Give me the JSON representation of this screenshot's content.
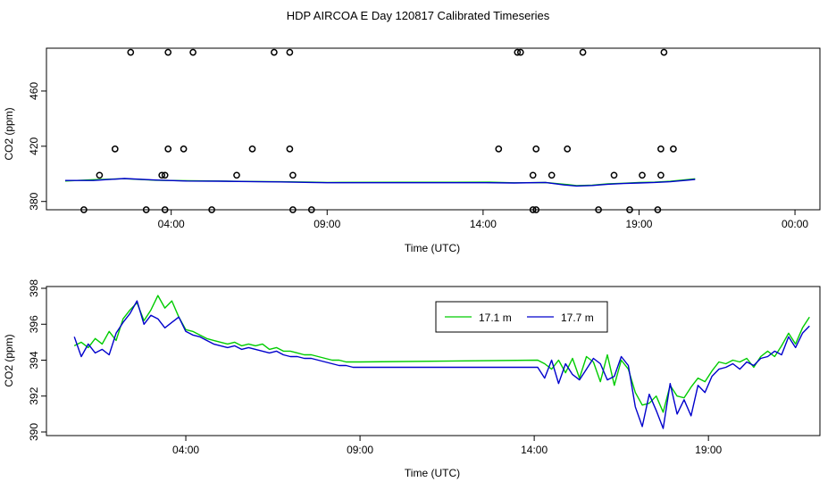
{
  "title": "HDP AIRCOA E  Day 120817  Calibrated Timeseries",
  "colors": {
    "green": "#00cc00",
    "blue": "#0000cc",
    "axis": "#000000",
    "marker": "#000000"
  },
  "chart_data": [
    {
      "type": "line",
      "xlabel": "Time (UTC)",
      "ylabel": "CO2 (ppm)",
      "xlim": [
        0.0,
        24.8
      ],
      "ylim": [
        374,
        491
      ],
      "xticks": [
        4,
        9,
        14,
        19,
        24
      ],
      "xtick_labels": [
        "04:00",
        "09:00",
        "14:00",
        "19:00",
        "00:00"
      ],
      "yticks": [
        380,
        420,
        460
      ],
      "yticks_labels": [
        "380",
        "420",
        "460"
      ],
      "grid": false,
      "series": [
        {
          "color": "green",
          "x": [
            0.6,
            1.5,
            2.5,
            3.5,
            4.5,
            5.5,
            6.5,
            7.5,
            8.5,
            9.0,
            11.5,
            14.2,
            15.0,
            16.0,
            16.6,
            17.0,
            17.5,
            18.0,
            18.5,
            19.0,
            19.5,
            20.0,
            20.8
          ],
          "y": [
            394.8,
            395.8,
            396.5,
            395.4,
            395.0,
            394.8,
            394.5,
            394.3,
            394.0,
            393.8,
            393.9,
            394.0,
            393.5,
            393.7,
            392.5,
            391.5,
            391.8,
            392.8,
            393.2,
            393.7,
            394.0,
            394.6,
            396.4
          ]
        },
        {
          "color": "blue",
          "x": [
            0.6,
            1.5,
            2.5,
            3.5,
            4.5,
            5.5,
            6.5,
            7.5,
            8.5,
            9.0,
            14.1,
            15.0,
            16.0,
            16.6,
            17.0,
            17.5,
            18.0,
            18.5,
            19.0,
            19.5,
            20.0,
            20.8
          ],
          "y": [
            395.2,
            395.2,
            396.6,
            395.5,
            394.8,
            394.7,
            394.4,
            394.2,
            393.8,
            393.6,
            393.6,
            393.4,
            393.8,
            392.0,
            391.2,
            391.6,
            392.5,
            393.0,
            393.4,
            393.8,
            394.3,
            396.0
          ]
        }
      ],
      "markers": {
        "shape": "open-circle",
        "x": [
          1.2,
          1.7,
          2.2,
          2.7,
          3.2,
          3.7,
          3.8,
          3.8,
          3.9,
          3.9,
          4.4,
          4.7,
          5.3,
          6.1,
          6.6,
          7.3,
          7.8,
          7.8,
          7.9,
          7.9,
          8.5,
          14.5,
          15.1,
          15.2,
          15.6,
          15.6,
          15.7,
          15.7,
          16.2,
          16.7,
          17.2,
          17.7,
          18.2,
          18.7,
          19.1,
          19.6,
          19.7,
          19.7,
          19.8,
          20.1
        ],
        "y": [
          374,
          399,
          418,
          488,
          374,
          399,
          374,
          399,
          418,
          488,
          418,
          488,
          374,
          399,
          418,
          488,
          418,
          488,
          374,
          399,
          374,
          418,
          488,
          488,
          374,
          399,
          418,
          374,
          399,
          418,
          488,
          374,
          399,
          374,
          399,
          374,
          399,
          418,
          488,
          418
        ]
      }
    },
    {
      "type": "line",
      "xlabel": "Time (UTC)",
      "ylabel": "CO2 (ppm)",
      "xlim": [
        0.0,
        22.2
      ],
      "ylim": [
        389.8,
        398.1
      ],
      "xticks": [
        4,
        9,
        14,
        19
      ],
      "xtick_labels": [
        "04:00",
        "09:00",
        "14:00",
        "19:00"
      ],
      "yticks": [
        390,
        392,
        394,
        396,
        398
      ],
      "yticks_labels": [
        "390",
        "392",
        "394",
        "396",
        "398"
      ],
      "grid": false,
      "legend": {
        "placement": "top-right-inside",
        "entries": [
          "17.1 m",
          "17.7 m"
        ]
      },
      "series": [
        {
          "name": "17.1 m",
          "color": "green",
          "x": [
            0.8,
            1.0,
            1.2,
            1.4,
            1.6,
            1.8,
            2.0,
            2.2,
            2.4,
            2.6,
            2.8,
            3.0,
            3.2,
            3.4,
            3.6,
            3.8,
            4.0,
            4.2,
            4.4,
            4.6,
            4.8,
            5.0,
            5.2,
            5.4,
            5.6,
            5.8,
            6.0,
            6.2,
            6.4,
            6.6,
            6.8,
            7.0,
            7.2,
            7.4,
            7.6,
            7.8,
            8.0,
            8.2,
            8.4,
            8.6,
            8.8,
            9.0,
            14.1,
            14.3,
            14.5,
            14.7,
            14.9,
            15.1,
            15.3,
            15.5,
            15.7,
            15.9,
            16.1,
            16.3,
            16.5,
            16.7,
            16.9,
            17.1,
            17.3,
            17.5,
            17.7,
            17.9,
            18.1,
            18.3,
            18.5,
            18.7,
            18.9,
            19.1,
            19.3,
            19.5,
            19.7,
            19.9,
            20.1,
            20.3,
            20.5,
            20.7,
            20.9,
            21.1,
            21.3,
            21.5,
            21.7,
            21.9
          ],
          "y": [
            394.8,
            395.0,
            394.7,
            395.2,
            394.9,
            395.6,
            395.1,
            396.3,
            396.8,
            397.2,
            396.2,
            396.8,
            397.6,
            396.9,
            397.3,
            396.4,
            395.7,
            395.6,
            395.4,
            395.2,
            395.1,
            395.0,
            394.9,
            395.0,
            394.8,
            394.9,
            394.8,
            394.9,
            394.6,
            394.7,
            394.5,
            394.5,
            394.4,
            394.3,
            394.3,
            394.2,
            394.1,
            394.0,
            394.0,
            393.9,
            393.9,
            393.9,
            394.0,
            393.8,
            393.5,
            394.0,
            393.3,
            394.1,
            393.0,
            394.2,
            393.9,
            392.8,
            394.3,
            392.6,
            394.0,
            393.5,
            392.2,
            391.5,
            391.6,
            392.0,
            391.1,
            392.6,
            392.0,
            391.9,
            392.5,
            393.0,
            392.8,
            393.4,
            393.9,
            393.8,
            394.0,
            393.9,
            394.1,
            393.6,
            394.2,
            394.5,
            394.2,
            394.8,
            395.5,
            394.9,
            395.8,
            396.4
          ]
        },
        {
          "name": "17.7 m",
          "color": "blue",
          "x": [
            0.8,
            1.0,
            1.2,
            1.4,
            1.6,
            1.8,
            2.0,
            2.2,
            2.4,
            2.6,
            2.8,
            3.0,
            3.2,
            3.4,
            3.6,
            3.8,
            4.0,
            4.2,
            4.4,
            4.6,
            4.8,
            5.0,
            5.2,
            5.4,
            5.6,
            5.8,
            6.0,
            6.2,
            6.4,
            6.6,
            6.8,
            7.0,
            7.2,
            7.4,
            7.6,
            7.8,
            8.0,
            8.2,
            8.4,
            8.6,
            8.8,
            9.0,
            14.1,
            14.3,
            14.5,
            14.7,
            14.9,
            15.1,
            15.3,
            15.5,
            15.7,
            15.9,
            16.1,
            16.3,
            16.5,
            16.7,
            16.9,
            17.1,
            17.3,
            17.5,
            17.7,
            17.9,
            18.1,
            18.3,
            18.5,
            18.7,
            18.9,
            19.1,
            19.3,
            19.5,
            19.7,
            19.9,
            20.1,
            20.3,
            20.5,
            20.7,
            20.9,
            21.1,
            21.3,
            21.5,
            21.7,
            21.9
          ],
          "y": [
            395.3,
            394.2,
            394.9,
            394.4,
            394.6,
            394.3,
            395.5,
            396.1,
            396.6,
            397.3,
            396.0,
            396.5,
            396.3,
            395.8,
            396.1,
            396.4,
            395.6,
            395.4,
            395.3,
            395.1,
            394.9,
            394.8,
            394.7,
            394.8,
            394.6,
            394.7,
            394.6,
            394.5,
            394.4,
            394.5,
            394.3,
            394.2,
            394.2,
            394.1,
            394.1,
            394.0,
            393.9,
            393.8,
            393.7,
            393.7,
            393.6,
            393.6,
            393.6,
            393.0,
            394.0,
            392.7,
            393.8,
            393.2,
            392.9,
            393.5,
            394.1,
            393.8,
            392.9,
            393.1,
            394.2,
            393.7,
            391.4,
            390.3,
            392.1,
            391.2,
            390.2,
            392.7,
            391.0,
            391.8,
            390.9,
            392.6,
            392.2,
            393.1,
            393.5,
            393.6,
            393.8,
            393.5,
            393.9,
            393.7,
            394.1,
            394.2,
            394.5,
            394.3,
            395.3,
            394.7,
            395.5,
            395.9
          ]
        }
      ]
    }
  ]
}
